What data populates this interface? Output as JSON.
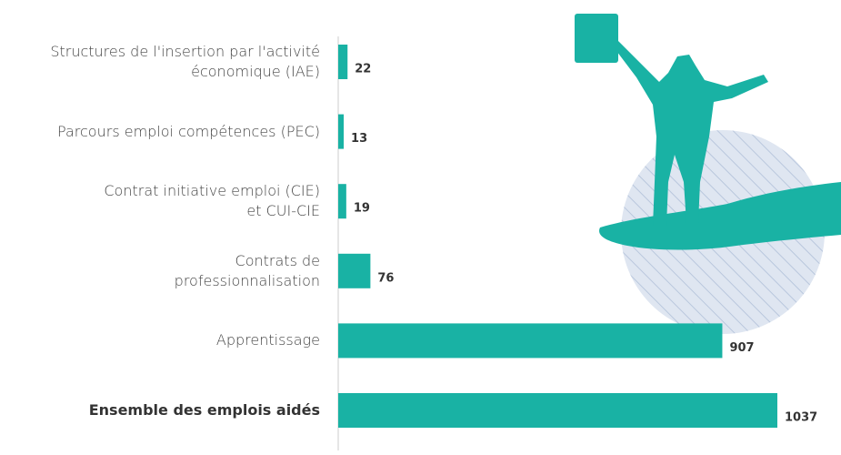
{
  "chart_data": {
    "type": "bar",
    "orientation": "horizontal",
    "categories": [
      "Structures de l'insertion par l'activité\néconomique (IAE)",
      "Parcours emploi compétences (PEC)",
      "Contrat initiative emploi (CIE)\net CUI-CIE",
      "Contrats de\nprofessionnalisation",
      "Apprentissage",
      "Ensemble des emplois aidés"
    ],
    "values": [
      22,
      13,
      19,
      76,
      907,
      1037
    ],
    "color": "#19b2a4",
    "highlight_index": 5
  }
}
